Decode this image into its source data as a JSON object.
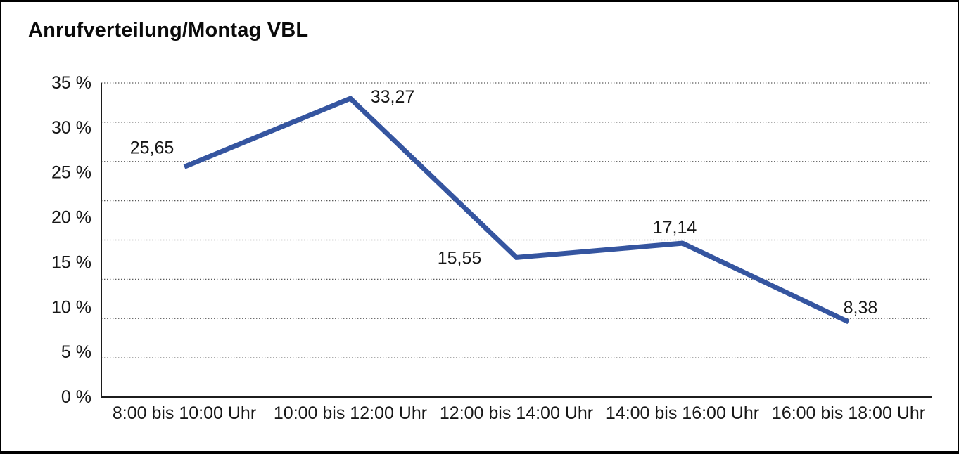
{
  "window": {
    "title": "Anrufverteilung/Montag VBL"
  },
  "chart_data": {
    "type": "line",
    "title": "Anrufverteilung/Montag VBL",
    "categories": [
      "8:00 bis 10:00 Uhr",
      "10:00 bis 12:00 Uhr",
      "12:00 bis 14:00 Uhr",
      "14:00 bis 16:00 Uhr",
      "16:00 bis 18:00 Uhr"
    ],
    "series": [
      {
        "name": "Anrufverteilung Montag VBL",
        "values": [
          25.65,
          33.27,
          15.55,
          17.14,
          8.38
        ],
        "data_labels": [
          "25,65",
          "33,27",
          "15,55",
          "17,14",
          "8,38"
        ]
      }
    ],
    "xlabel": "",
    "ylabel": "",
    "y_ticks": [
      "35 %",
      "30 %",
      "25 %",
      "20 %",
      "15 %",
      "10 %",
      "5 %",
      "0 %"
    ],
    "ylim": [
      0,
      35
    ],
    "y_unit": "%",
    "decimal_separator": ",",
    "grid": "horizontal-dotted",
    "legend": "none",
    "colors": {
      "line": "#3555A0",
      "axis": "#1c1c1c",
      "gridline": "#595959",
      "text": "#171717",
      "background": "#ffffff"
    }
  }
}
